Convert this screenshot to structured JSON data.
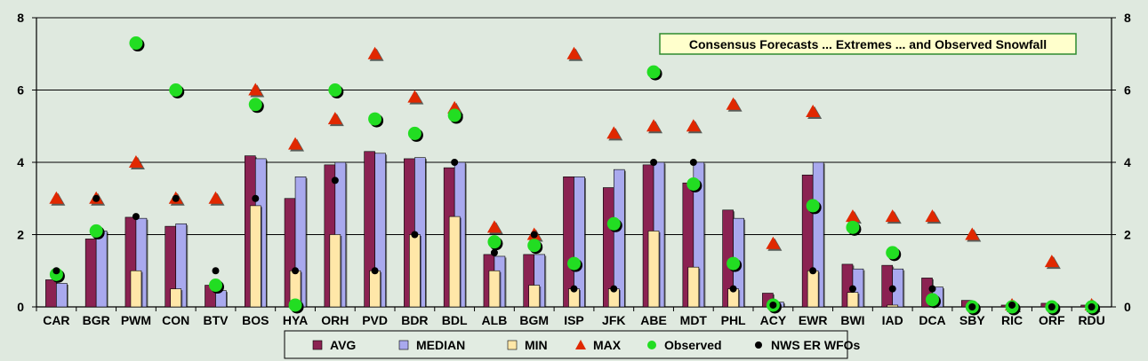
{
  "colors": {
    "background": "#dfe9df",
    "avg": "#8b2252",
    "median": "#a9a9ee",
    "min": "#ffe7a8",
    "max": "#e02800",
    "observed": "#22dd22",
    "nws": "#000000",
    "title_bg": "#ffffcc",
    "title_border": "#2e8b2e"
  },
  "chart_data": {
    "type": "bar",
    "title": "Consensus Forecasts ... Extremes ... and Observed Snowfall",
    "xlabel": "",
    "ylabel": "",
    "ylim": [
      0,
      8
    ],
    "yticks": [
      "0",
      "2",
      "4",
      "6",
      "8"
    ],
    "grid": true,
    "legend_position": "bottom",
    "categories": [
      "CAR",
      "BGR",
      "PWM",
      "CON",
      "BTV",
      "BOS",
      "HYA",
      "ORH",
      "PVD",
      "BDR",
      "BDL",
      "ALB",
      "BGM",
      "ISP",
      "JFK",
      "ABE",
      "MDT",
      "PHL",
      "ACY",
      "EWR",
      "BWI",
      "IAD",
      "DCA",
      "SBY",
      "RIC",
      "ORF",
      "RDU"
    ],
    "series": [
      {
        "name": "AVG",
        "type": "bar",
        "values": [
          0.75,
          1.88,
          2.48,
          2.23,
          0.6,
          4.18,
          3.0,
          3.93,
          4.3,
          4.1,
          3.85,
          1.45,
          1.45,
          3.6,
          3.3,
          3.93,
          3.43,
          2.68,
          0.38,
          3.65,
          1.18,
          1.15,
          0.8,
          0.18,
          0.05,
          0.1,
          0.05
        ]
      },
      {
        "name": "MEDIAN",
        "type": "bar",
        "values": [
          0.65,
          2.1,
          2.45,
          2.3,
          0.45,
          4.1,
          3.6,
          4.0,
          4.25,
          4.13,
          4.0,
          1.4,
          1.45,
          3.6,
          3.8,
          4.0,
          4.0,
          2.45,
          0.13,
          4.0,
          1.05,
          1.05,
          0.55,
          0.0,
          0.0,
          0.0,
          0.0
        ]
      },
      {
        "name": "MIN",
        "type": "bar",
        "values": [
          0,
          0,
          1.0,
          0.5,
          0,
          2.8,
          1.0,
          2.0,
          1.0,
          2.0,
          2.5,
          1.0,
          0.6,
          0.5,
          0.5,
          2.1,
          1.1,
          0.5,
          0,
          1.0,
          0.4,
          0.05,
          0,
          0,
          0,
          0,
          0
        ]
      },
      {
        "name": "MAX",
        "type": "marker",
        "values": [
          3.0,
          3.0,
          4.0,
          3.0,
          3.0,
          6.0,
          4.5,
          5.2,
          7.0,
          5.8,
          5.5,
          2.2,
          2.0,
          7.0,
          4.8,
          5.0,
          5.0,
          5.6,
          1.75,
          5.4,
          2.5,
          2.5,
          2.5,
          2.0,
          0.05,
          1.25,
          0.05
        ]
      },
      {
        "name": "Observed",
        "type": "marker",
        "values": [
          0.9,
          2.1,
          7.3,
          6.0,
          0.6,
          5.6,
          0.05,
          6.0,
          5.2,
          4.8,
          5.3,
          1.8,
          1.7,
          1.2,
          2.3,
          6.5,
          3.4,
          1.2,
          0.05,
          2.8,
          2.2,
          1.5,
          0.2,
          0.0,
          0.0,
          0.0,
          0.0
        ]
      },
      {
        "name": "NWS ER WFOs",
        "type": "marker",
        "values": [
          1.0,
          3.0,
          2.5,
          3.0,
          1.0,
          3.0,
          1.0,
          3.5,
          1.0,
          2.0,
          4.0,
          1.5,
          2.0,
          0.5,
          0.5,
          4.0,
          4.0,
          0.5,
          0.05,
          1.0,
          0.5,
          0.5,
          0.5,
          0.0,
          0.05,
          0.0,
          0.0
        ]
      }
    ]
  }
}
